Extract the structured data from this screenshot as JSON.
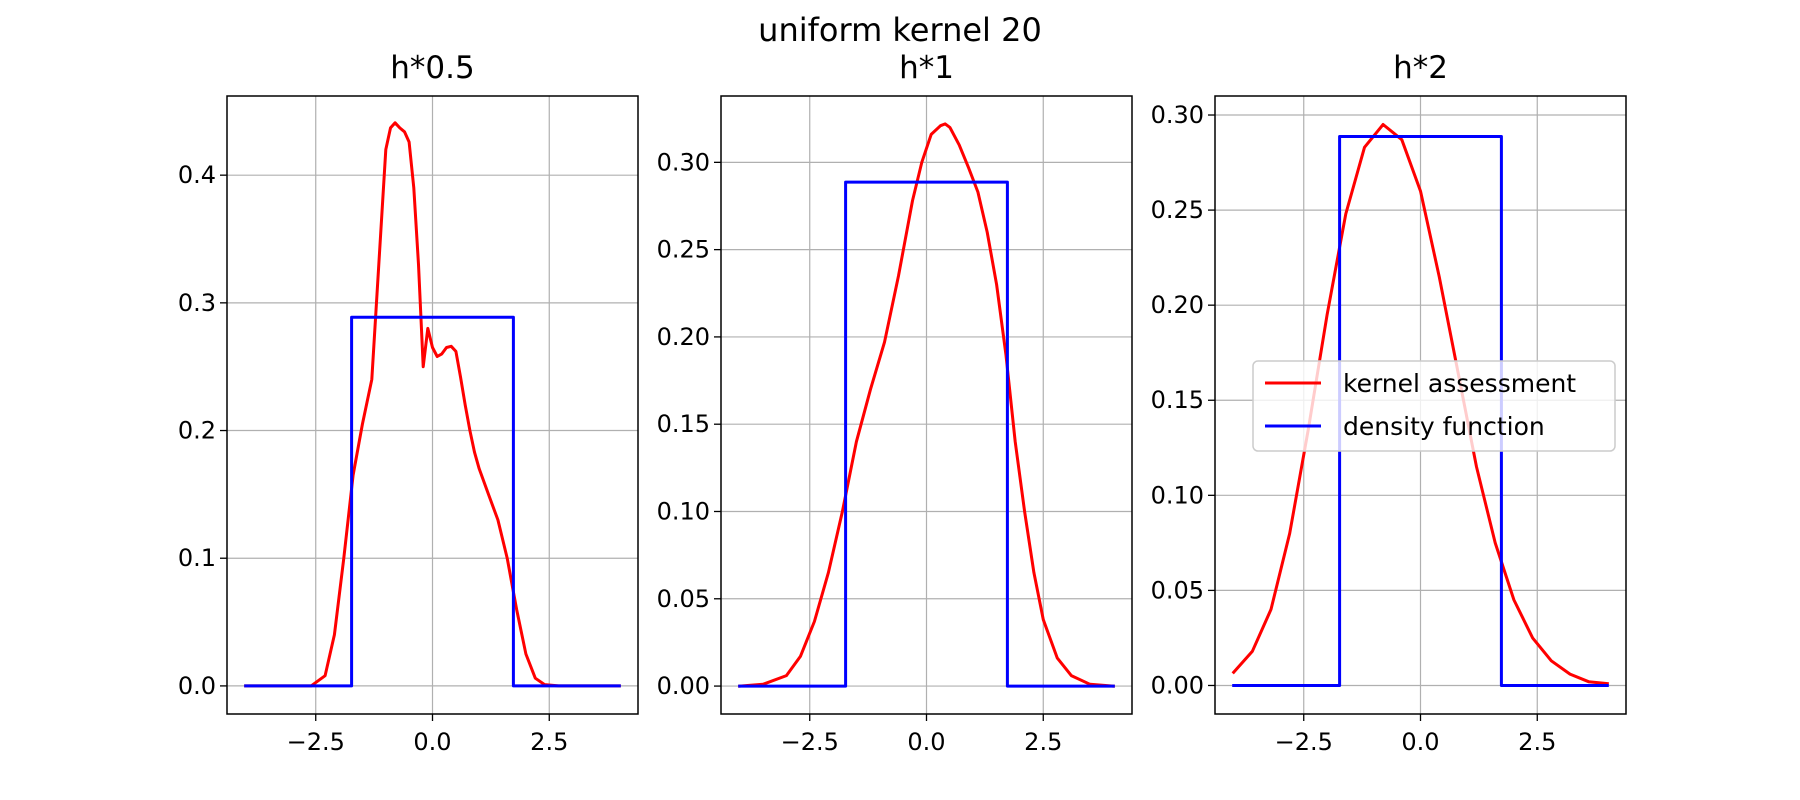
{
  "chart_data": {
    "suptitle": "uniform kernel 20",
    "legend": {
      "placement": "center-right of third panel",
      "entries": [
        {
          "label": "kernel assessment",
          "color": "#ff0000"
        },
        {
          "label": "density function",
          "color": "#0000ff"
        }
      ]
    },
    "panels": [
      {
        "type": "line",
        "title": "h*0.5",
        "xlim": [
          -4.4,
          4.4
        ],
        "ylim": [
          -0.022,
          0.462
        ],
        "xticks": [
          -2.5,
          0.0,
          2.5
        ],
        "xtick_labels": [
          "−2.5",
          "0.0",
          "2.5"
        ],
        "yticks": [
          0.0,
          0.1,
          0.2,
          0.3,
          0.4
        ],
        "ytick_labels": [
          "0.0",
          "0.1",
          "0.2",
          "0.3",
          "0.4"
        ],
        "grid": true,
        "series": [
          {
            "name": "kernel assessment",
            "color": "#ff0000",
            "x": [
              -4.0,
              -2.6,
              -2.3,
              -2.1,
              -1.9,
              -1.7,
              -1.5,
              -1.3,
              -1.15,
              -1.0,
              -0.9,
              -0.8,
              -0.7,
              -0.6,
              -0.5,
              -0.4,
              -0.3,
              -0.2,
              -0.1,
              0.0,
              0.1,
              0.2,
              0.3,
              0.4,
              0.5,
              0.6,
              0.7,
              0.8,
              0.9,
              1.0,
              1.2,
              1.4,
              1.6,
              1.8,
              2.0,
              2.2,
              2.4,
              2.7,
              4.0
            ],
            "y": [
              0.0,
              0.0,
              0.008,
              0.04,
              0.1,
              0.165,
              0.205,
              0.24,
              0.33,
              0.42,
              0.437,
              0.441,
              0.437,
              0.434,
              0.426,
              0.39,
              0.33,
              0.25,
              0.28,
              0.265,
              0.258,
              0.26,
              0.265,
              0.266,
              0.262,
              0.242,
              0.22,
              0.2,
              0.183,
              0.17,
              0.15,
              0.13,
              0.1,
              0.06,
              0.025,
              0.006,
              0.001,
              0.0,
              0.0
            ]
          },
          {
            "name": "density function",
            "color": "#0000ff",
            "x": [
              -4.0,
              -1.732,
              -1.732,
              1.732,
              1.732,
              4.0
            ],
            "y": [
              0.0,
              0.0,
              0.2887,
              0.2887,
              0.0,
              0.0
            ]
          }
        ]
      },
      {
        "type": "line",
        "title": "h*1",
        "xlim": [
          -4.4,
          4.4
        ],
        "ylim": [
          -0.016,
          0.338
        ],
        "xticks": [
          -2.5,
          0.0,
          2.5
        ],
        "xtick_labels": [
          "−2.5",
          "0.0",
          "2.5"
        ],
        "yticks": [
          0.0,
          0.05,
          0.1,
          0.15,
          0.2,
          0.25,
          0.3
        ],
        "ytick_labels": [
          "0.00",
          "0.05",
          "0.10",
          "0.15",
          "0.20",
          "0.25",
          "0.30"
        ],
        "grid": true,
        "series": [
          {
            "name": "kernel assessment",
            "color": "#ff0000",
            "x": [
              -4.0,
              -3.5,
              -3.0,
              -2.7,
              -2.4,
              -2.1,
              -1.8,
              -1.5,
              -1.2,
              -0.9,
              -0.6,
              -0.3,
              -0.1,
              0.1,
              0.3,
              0.4,
              0.5,
              0.7,
              0.9,
              1.1,
              1.3,
              1.5,
              1.7,
              1.9,
              2.1,
              2.3,
              2.5,
              2.8,
              3.1,
              3.5,
              4.0
            ],
            "y": [
              0.0,
              0.001,
              0.006,
              0.017,
              0.037,
              0.065,
              0.1,
              0.14,
              0.17,
              0.197,
              0.235,
              0.278,
              0.3,
              0.316,
              0.321,
              0.322,
              0.32,
              0.31,
              0.297,
              0.283,
              0.26,
              0.23,
              0.19,
              0.14,
              0.1,
              0.065,
              0.038,
              0.016,
              0.006,
              0.001,
              0.0
            ]
          },
          {
            "name": "density function",
            "color": "#0000ff",
            "x": [
              -4.0,
              -1.732,
              -1.732,
              1.732,
              1.732,
              4.0
            ],
            "y": [
              0.0,
              0.0,
              0.2887,
              0.2887,
              0.0,
              0.0
            ]
          }
        ]
      },
      {
        "type": "line",
        "title": "h*2",
        "xlim": [
          -4.4,
          4.4
        ],
        "ylim": [
          -0.015,
          0.31
        ],
        "xticks": [
          -2.5,
          0.0,
          2.5
        ],
        "xtick_labels": [
          "−2.5",
          "0.0",
          "2.5"
        ],
        "yticks": [
          0.0,
          0.05,
          0.1,
          0.15,
          0.2,
          0.25,
          0.3
        ],
        "ytick_labels": [
          "0.00",
          "0.05",
          "0.10",
          "0.15",
          "0.20",
          "0.25",
          "0.30"
        ],
        "grid": true,
        "series": [
          {
            "name": "kernel assessment",
            "color": "#ff0000",
            "x": [
              -4.0,
              -3.6,
              -3.2,
              -2.8,
              -2.4,
              -2.0,
              -1.6,
              -1.2,
              -0.8,
              -0.4,
              0.0,
              0.4,
              0.8,
              1.2,
              1.6,
              2.0,
              2.4,
              2.8,
              3.2,
              3.6,
              4.0
            ],
            "y": [
              0.007,
              0.018,
              0.04,
              0.08,
              0.135,
              0.195,
              0.248,
              0.283,
              0.295,
              0.287,
              0.26,
              0.215,
              0.165,
              0.115,
              0.075,
              0.045,
              0.025,
              0.013,
              0.006,
              0.002,
              0.001
            ]
          },
          {
            "name": "density function",
            "color": "#0000ff",
            "x": [
              -4.0,
              -1.732,
              -1.732,
              1.732,
              1.732,
              4.0
            ],
            "y": [
              0.0,
              0.0,
              0.2887,
              0.2887,
              0.0,
              0.0
            ]
          }
        ]
      }
    ]
  }
}
